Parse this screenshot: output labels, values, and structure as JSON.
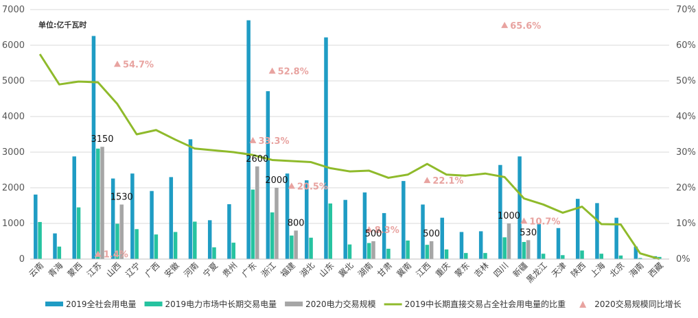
{
  "chart_data": {
    "type": "bar",
    "unit_label": "单位:亿千瓦时",
    "categories": [
      "云南",
      "青海",
      "蒙西",
      "江苏",
      "山西",
      "辽宁",
      "广西",
      "安徽",
      "河南",
      "宁夏",
      "贵州",
      "广东",
      "浙江",
      "福建",
      "湖北",
      "山东",
      "冀北",
      "湖南",
      "甘肃",
      "冀南",
      "江西",
      "重庆",
      "蒙东",
      "吉林",
      "四川",
      "新疆",
      "黑龙江",
      "天津",
      "陕西",
      "上海",
      "北京",
      "海南",
      "西藏"
    ],
    "y_left": {
      "min": 0,
      "max": 7000,
      "ticks": [
        "0",
        "1000",
        "2000",
        "3000",
        "4000",
        "5000",
        "6000",
        "7000"
      ]
    },
    "y_right": {
      "min": 0,
      "max": 70,
      "ticks": [
        "0%",
        "10%",
        "20%",
        "30%",
        "40%",
        "50%",
        "60%",
        "70%"
      ]
    },
    "gridlines": true,
    "legend_position": "bottom",
    "series": [
      {
        "name": "2019全社会用电量",
        "kind": "bar",
        "axis": "left",
        "color": "#1f9cc4",
        "values": [
          1810,
          720,
          2880,
          6260,
          2260,
          2400,
          1910,
          2300,
          3360,
          1090,
          1540,
          6700,
          4710,
          2400,
          2210,
          6220,
          1660,
          1870,
          1290,
          2190,
          1530,
          1160,
          760,
          780,
          2640,
          2880,
          980,
          870,
          1690,
          1570,
          1160,
          350,
          80
        ]
      },
      {
        "name": "2019电力市场中长期交易电量",
        "kind": "bar",
        "axis": "left",
        "color": "#26c3a0",
        "values": [
          1040,
          350,
          1450,
          3100,
          990,
          840,
          690,
          760,
          1050,
          330,
          460,
          1950,
          1310,
          660,
          600,
          1560,
          410,
          450,
          290,
          520,
          400,
          270,
          170,
          170,
          610,
          480,
          150,
          110,
          240,
          150,
          100,
          30,
          60
        ]
      },
      {
        "name": "2020电力交易规模",
        "kind": "bar",
        "axis": "left",
        "color": "#a6a6a6",
        "values": [
          null,
          null,
          null,
          3150,
          1530,
          null,
          null,
          null,
          null,
          null,
          null,
          2600,
          2000,
          800,
          null,
          null,
          null,
          500,
          null,
          null,
          500,
          null,
          null,
          null,
          1000,
          530,
          null,
          null,
          null,
          null,
          null,
          null,
          null
        ]
      },
      {
        "name": "2019中长期直接交易占全社会用电量的比重",
        "kind": "line",
        "axis": "right",
        "color": "#8fba2b",
        "values": [
          57.5,
          49,
          49.8,
          49.6,
          43.5,
          35,
          36.2,
          33.5,
          31,
          30.5,
          30,
          29.2,
          27.8,
          27.5,
          27.2,
          25.5,
          24.6,
          24.8,
          22.8,
          23.7,
          26.7,
          23.7,
          23.4,
          24,
          23,
          17,
          15.3,
          13,
          14.7,
          9.8,
          9.7,
          1.6,
          0
        ]
      },
      {
        "name": "2020交易规模同比增长",
        "kind": "marker",
        "axis": "right",
        "color": "#e8a3a0",
        "points": [
          {
            "category": "江苏",
            "value": 1.4,
            "label": "1.4%"
          },
          {
            "category": "山西",
            "value": 54.7,
            "label": "54.7%"
          },
          {
            "category": "广东",
            "value": 33.3,
            "label": "33.3%"
          },
          {
            "category": "浙江",
            "value": 52.8,
            "label": "52.8%"
          },
          {
            "category": "福建",
            "value": 20.5,
            "label": "20.5%"
          },
          {
            "category": "湖南",
            "value": 8.3,
            "label": "8.3%"
          },
          {
            "category": "江西",
            "value": 22.1,
            "label": "22.1%"
          },
          {
            "category": "四川",
            "value": 65.6,
            "label": "65.6%"
          },
          {
            "category": "新疆",
            "value": 10.7,
            "label": "10.7%"
          }
        ]
      }
    ],
    "data_labels": [
      {
        "category": "江苏",
        "text": "3150"
      },
      {
        "category": "山西",
        "text": "1530"
      },
      {
        "category": "广东",
        "text": "2600"
      },
      {
        "category": "浙江",
        "text": "2000"
      },
      {
        "category": "福建",
        "text": "800"
      },
      {
        "category": "湖南",
        "text": "500"
      },
      {
        "category": "江西",
        "text": "500"
      },
      {
        "category": "四川",
        "text": "1000"
      },
      {
        "category": "新疆",
        "text": "530"
      }
    ]
  }
}
